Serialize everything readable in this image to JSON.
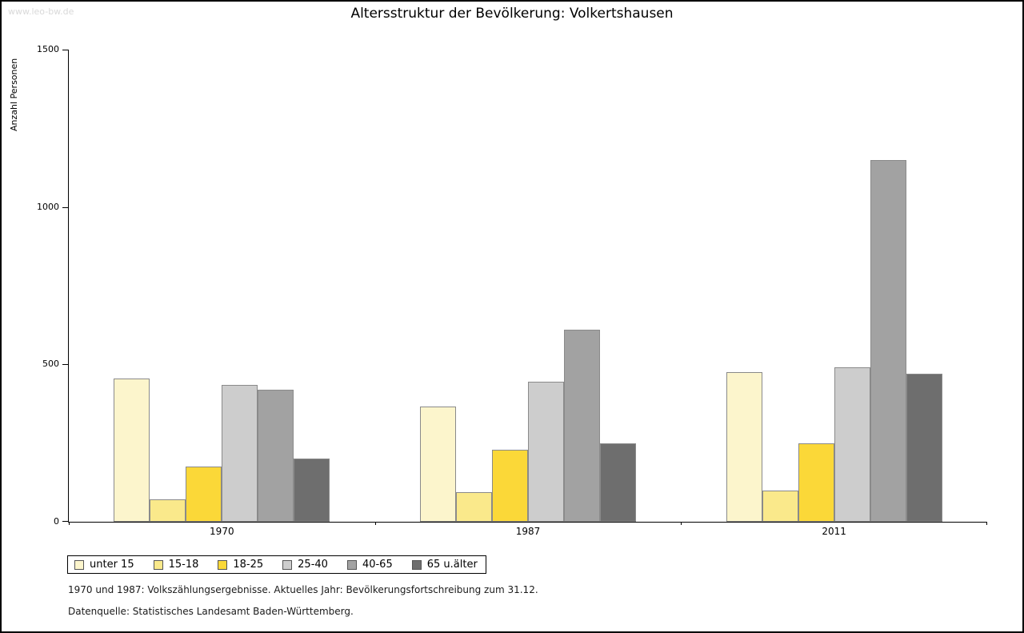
{
  "watermark": "www.leo-bw.de",
  "title": "Altersstruktur der Bevölkerung: Volkertshausen",
  "footnotes": [
    "1970 und 1987: Volkszählungsergebnisse. Aktuelles Jahr: Bevölkerungsfortschreibung zum 31.12.",
    "Datenquelle: Statistisches Landesamt Baden-Württemberg."
  ],
  "chart_data": {
    "type": "bar",
    "title": "Altersstruktur der Bevölkerung: Volkertshausen",
    "xlabel": "",
    "ylabel": "Anzahl Personen",
    "ylim": [
      0,
      1500
    ],
    "yticks": [
      0,
      500,
      1000,
      1500
    ],
    "grid": false,
    "legend_position": "bottom-left",
    "bar_border_color": "#8a8a8a",
    "categories": [
      "1970",
      "1987",
      "2011"
    ],
    "series": [
      {
        "name": "unter 15",
        "color": "#fcf5cc",
        "values": [
          455,
          365,
          475
        ]
      },
      {
        "name": "15-18",
        "color": "#fae98b",
        "values": [
          70,
          95,
          100
        ]
      },
      {
        "name": "18-25",
        "color": "#fbd838",
        "values": [
          175,
          230,
          250
        ]
      },
      {
        "name": "25-40",
        "color": "#cdcdcd",
        "values": [
          435,
          445,
          490
        ]
      },
      {
        "name": "40-65",
        "color": "#a2a2a2",
        "values": [
          420,
          610,
          1150
        ]
      },
      {
        "name": "65 u.älter",
        "color": "#6e6e6e",
        "values": [
          200,
          250,
          470
        ]
      }
    ]
  }
}
